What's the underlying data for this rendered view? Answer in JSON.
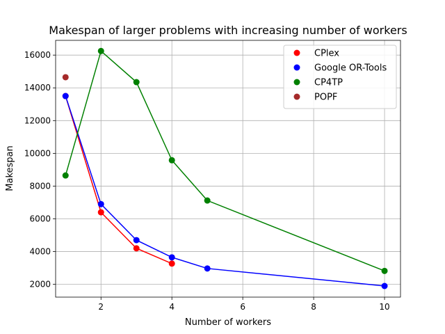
{
  "chart_data": {
    "type": "line",
    "title": "Makespan of larger problems with increasing number of workers",
    "xlabel": "Number of workers",
    "ylabel": "Makespan",
    "xlim": [
      0.72,
      10.45
    ],
    "ylim": [
      1220,
      16900
    ],
    "xticks": [
      2,
      4,
      6,
      8,
      10
    ],
    "yticks": [
      2000,
      4000,
      6000,
      8000,
      10000,
      12000,
      14000,
      16000
    ],
    "grid": true,
    "legend_position": "top-right",
    "series": [
      {
        "name": "CPlex",
        "color": "#ff0000",
        "x": [
          1,
          2,
          3,
          4
        ],
        "y": [
          13500,
          6400,
          4200,
          3270
        ],
        "line": true
      },
      {
        "name": "Google OR-Tools",
        "color": "#0000ff",
        "x": [
          1,
          2,
          3,
          4,
          5,
          10
        ],
        "y": [
          13500,
          6900,
          4700,
          3650,
          2970,
          1900
        ],
        "line": true
      },
      {
        "name": "CP4TP",
        "color": "#008000",
        "x": [
          1,
          2,
          3,
          4,
          5,
          10
        ],
        "y": [
          8650,
          16250,
          14350,
          9580,
          7120,
          2820
        ],
        "line": true
      },
      {
        "name": "POPF",
        "color": "#a52a2a",
        "x": [
          1
        ],
        "y": [
          14650
        ],
        "line": false
      }
    ]
  }
}
